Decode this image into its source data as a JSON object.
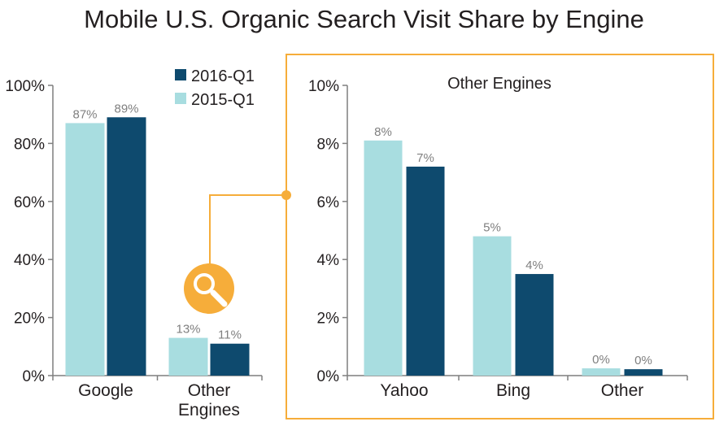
{
  "title": "Mobile U.S. Organic Search Visit Share by Engine",
  "colors": {
    "q2016": "#0e4a6e",
    "q2015": "#a8dde0",
    "accent": "#f6ad3a",
    "axis": "#7f7f7f"
  },
  "icon": "magnifier-icon",
  "chart_data": [
    {
      "type": "bar",
      "categories": [
        "Google",
        "Other Engines"
      ],
      "series": [
        {
          "name": "2015-Q1",
          "values": [
            87,
            13
          ],
          "labels": [
            "87%",
            "13%"
          ]
        },
        {
          "name": "2016-Q1",
          "values": [
            89,
            11
          ],
          "labels": [
            "89%",
            "11%"
          ]
        }
      ],
      "ylim": [
        0,
        100
      ],
      "yticks": [
        "0%",
        "20%",
        "40%",
        "60%",
        "80%",
        "100%"
      ],
      "legend": [
        "2016-Q1",
        "2015-Q1"
      ],
      "legend_position": "top-right"
    },
    {
      "type": "bar",
      "title": "Other Engines",
      "categories": [
        "Yahoo",
        "Bing",
        "Other"
      ],
      "series": [
        {
          "name": "2015-Q1",
          "values": [
            8.1,
            4.8,
            0.25
          ],
          "labels": [
            "8%",
            "5%",
            "0%"
          ]
        },
        {
          "name": "2016-Q1",
          "values": [
            7.2,
            3.5,
            0.22
          ],
          "labels": [
            "7%",
            "4%",
            "0%"
          ]
        }
      ],
      "ylim": [
        0,
        10
      ],
      "yticks": [
        "0%",
        "2%",
        "4%",
        "6%",
        "8%",
        "10%"
      ]
    }
  ]
}
